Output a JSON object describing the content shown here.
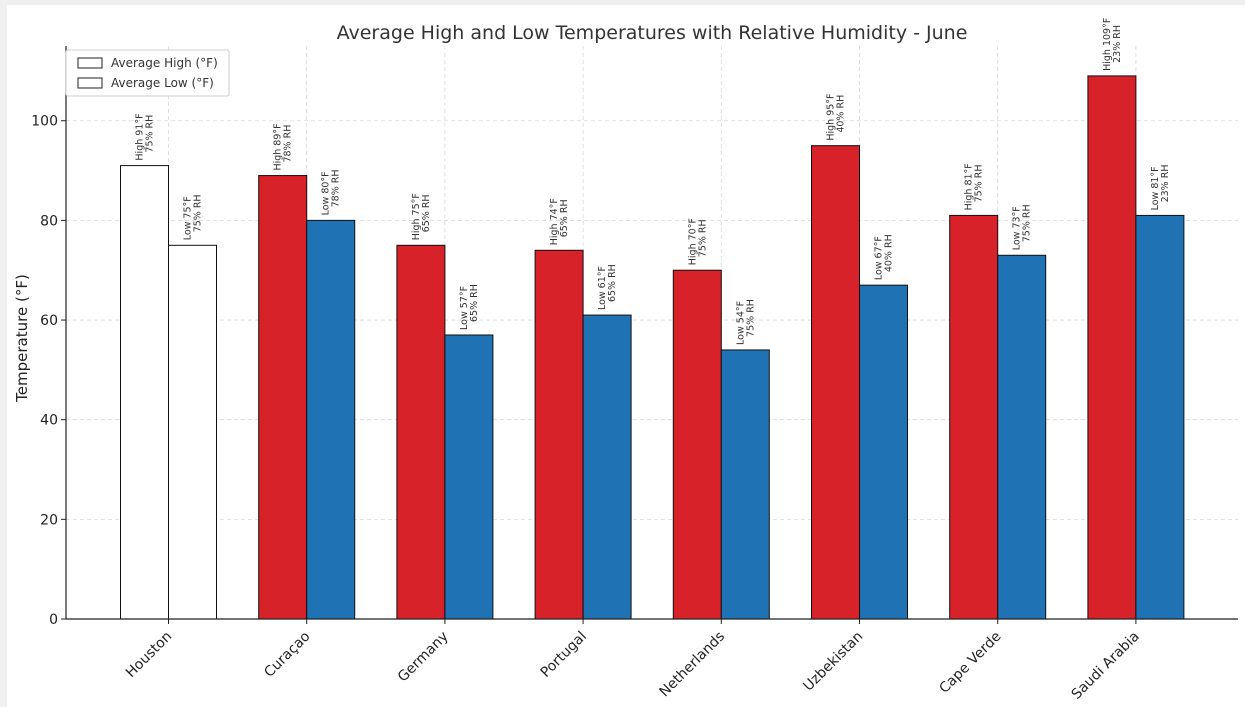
{
  "chart_data": {
    "type": "bar",
    "title": "Average High and Low Temperatures with Relative Humidity - June",
    "xlabel": "",
    "ylabel": "Temperature (°F)",
    "ylim": [
      0,
      115
    ],
    "yticks": [
      0,
      20,
      40,
      60,
      80,
      100
    ],
    "grid": true,
    "legend_position": "top-left",
    "categories": [
      "Houston",
      "Curaçao",
      "Germany",
      "Portugal",
      "Netherlands",
      "Uzbekistan",
      "Cape Verde",
      "Saudi Arabia"
    ],
    "series": [
      {
        "name": "Average High (°F)",
        "values": [
          91,
          89,
          75,
          74,
          70,
          95,
          81,
          109
        ],
        "color": "#d62228",
        "first_bar_color": "#ffffff",
        "labels": [
          [
            "High 91°F",
            "75% RH"
          ],
          [
            "High 89°F",
            "78% RH"
          ],
          [
            "High 75°F",
            "65% RH"
          ],
          [
            "High 74°F",
            "65% RH"
          ],
          [
            "High 70°F",
            "75% RH"
          ],
          [
            "High 95°F",
            "40% RH"
          ],
          [
            "High 81°F",
            "75% RH"
          ],
          [
            "High 109°F",
            "23% RH"
          ]
        ]
      },
      {
        "name": "Average Low (°F)",
        "values": [
          75,
          80,
          57,
          61,
          54,
          67,
          73,
          81
        ],
        "color": "#1f72b4",
        "first_bar_color": "#ffffff",
        "labels": [
          [
            "Low 75°F",
            "75% RH"
          ],
          [
            "Low 80°F",
            "78% RH"
          ],
          [
            "Low 57°F",
            "65% RH"
          ],
          [
            "Low 61°F",
            "65% RH"
          ],
          [
            "Low 54°F",
            "75% RH"
          ],
          [
            "Low 67°F",
            "40% RH"
          ],
          [
            "Low 73°F",
            "75% RH"
          ],
          [
            "Low 81°F",
            "23% RH"
          ]
        ]
      }
    ]
  }
}
